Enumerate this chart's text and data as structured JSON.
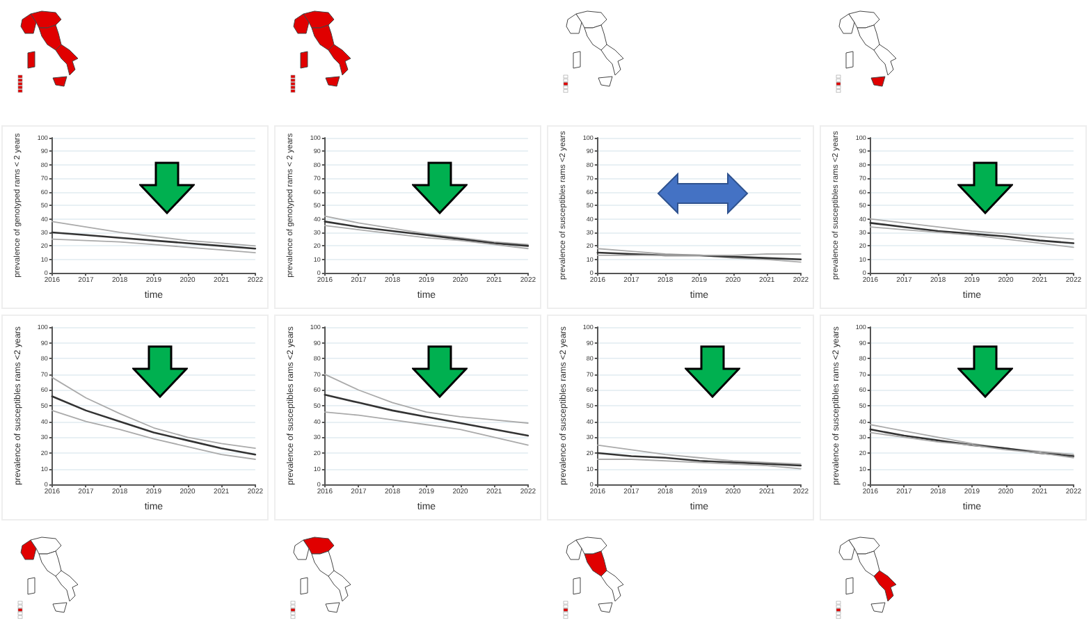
{
  "chart_data": [
    {
      "type": "line",
      "xlabel": "time",
      "ylabel": "prevalence of genotyped rams < 2 years",
      "x": [
        2016,
        2017,
        2018,
        2019,
        2020,
        2021,
        2022
      ],
      "xlim": [
        2016,
        2022
      ],
      "xticks": [
        2016,
        2017,
        2018,
        2019,
        2020,
        2021,
        2022
      ],
      "ylim": [
        0,
        100
      ],
      "yticks": [
        0,
        10,
        20,
        30,
        40,
        50,
        60,
        70,
        80,
        90,
        100
      ],
      "grid": "y",
      "marker": "none",
      "line_style": "solid",
      "series": [
        {
          "color": "#aaaaaa",
          "values": [
            38,
            34,
            30,
            27,
            24,
            22,
            20
          ]
        },
        {
          "color": "#333333",
          "values": [
            30,
            28,
            26,
            24,
            22,
            20,
            18
          ]
        },
        {
          "color": "#aaaaaa",
          "values": [
            25,
            24,
            23,
            21,
            19,
            17,
            15
          ]
        }
      ]
    },
    {
      "type": "line",
      "xlabel": "time",
      "ylabel": "prevalence of genotyped rams < 2 years",
      "x": [
        2016,
        2017,
        2018,
        2019,
        2020,
        2021,
        2022
      ],
      "xlim": [
        2016,
        2022
      ],
      "xticks": [
        2016,
        2017,
        2018,
        2019,
        2020,
        2021,
        2022
      ],
      "ylim": [
        0,
        100
      ],
      "yticks": [
        0,
        10,
        20,
        30,
        40,
        50,
        60,
        70,
        80,
        90,
        100
      ],
      "grid": "y",
      "marker": "none",
      "line_style": "solid",
      "series": [
        {
          "color": "#aaaaaa",
          "values": [
            42,
            37,
            33,
            29,
            26,
            23,
            21
          ]
        },
        {
          "color": "#333333",
          "values": [
            38,
            34,
            31,
            28,
            25,
            22,
            20
          ]
        },
        {
          "color": "#aaaaaa",
          "values": [
            35,
            32,
            29,
            26,
            24,
            21,
            18
          ]
        }
      ]
    },
    {
      "type": "line",
      "xlabel": "time",
      "ylabel": "prevalence of susceptibles rams <2 years",
      "x": [
        2016,
        2017,
        2018,
        2019,
        2020,
        2021,
        2022
      ],
      "xlim": [
        2016,
        2022
      ],
      "xticks": [
        2016,
        2017,
        2018,
        2019,
        2020,
        2021,
        2022
      ],
      "ylim": [
        0,
        100
      ],
      "yticks": [
        0,
        10,
        20,
        30,
        40,
        50,
        60,
        70,
        80,
        90,
        100
      ],
      "grid": "y",
      "marker": "none",
      "line_style": "solid",
      "series": [
        {
          "color": "#aaaaaa",
          "values": [
            18,
            16,
            14,
            13,
            11,
            10,
            8
          ]
        },
        {
          "color": "#333333",
          "values": [
            15,
            14,
            13,
            13,
            12,
            11,
            10
          ]
        },
        {
          "color": "#aaaaaa",
          "values": [
            13,
            13,
            13,
            13,
            13,
            14,
            14
          ]
        }
      ]
    },
    {
      "type": "line",
      "xlabel": "time",
      "ylabel": "prevalence of susceptibles rams <2 years",
      "x": [
        2016,
        2017,
        2018,
        2019,
        2020,
        2021,
        2022
      ],
      "xlim": [
        2016,
        2022
      ],
      "xticks": [
        2016,
        2017,
        2018,
        2019,
        2020,
        2021,
        2022
      ],
      "ylim": [
        0,
        100
      ],
      "yticks": [
        0,
        10,
        20,
        30,
        40,
        50,
        60,
        70,
        80,
        90,
        100
      ],
      "grid": "y",
      "marker": "none",
      "line_style": "solid",
      "series": [
        {
          "color": "#aaaaaa",
          "values": [
            40,
            37,
            34,
            31,
            29,
            27,
            25
          ]
        },
        {
          "color": "#333333",
          "values": [
            37,
            34,
            31,
            29,
            27,
            24,
            22
          ]
        },
        {
          "color": "#aaaaaa",
          "values": [
            34,
            32,
            30,
            28,
            25,
            22,
            19
          ]
        }
      ]
    },
    {
      "type": "line",
      "xlabel": "time",
      "ylabel": "prevalence of susceptibles rams <2 years",
      "x": [
        2016,
        2017,
        2018,
        2019,
        2020,
        2021,
        2022
      ],
      "xlim": [
        2016,
        2022
      ],
      "xticks": [
        2016,
        2017,
        2018,
        2019,
        2020,
        2021,
        2022
      ],
      "ylim": [
        0,
        100
      ],
      "yticks": [
        0,
        10,
        20,
        30,
        40,
        50,
        60,
        70,
        80,
        90,
        100
      ],
      "grid": "y",
      "marker": "none",
      "line_style": "solid",
      "series": [
        {
          "color": "#aaaaaa",
          "values": [
            68,
            55,
            45,
            36,
            30,
            26,
            23
          ]
        },
        {
          "color": "#333333",
          "values": [
            56,
            47,
            40,
            33,
            28,
            23,
            19
          ]
        },
        {
          "color": "#aaaaaa",
          "values": [
            47,
            40,
            35,
            29,
            24,
            19,
            16
          ]
        }
      ]
    },
    {
      "type": "line",
      "xlabel": "time",
      "ylabel": "prevalence of susceptibles rams <2 years",
      "x": [
        2016,
        2017,
        2018,
        2019,
        2020,
        2021,
        2022
      ],
      "xlim": [
        2016,
        2022
      ],
      "xticks": [
        2016,
        2017,
        2018,
        2019,
        2020,
        2021,
        2022
      ],
      "ylim": [
        0,
        100
      ],
      "yticks": [
        0,
        10,
        20,
        30,
        40,
        50,
        60,
        70,
        80,
        90,
        100
      ],
      "grid": "y",
      "marker": "none",
      "line_style": "solid",
      "series": [
        {
          "color": "#aaaaaa",
          "values": [
            70,
            60,
            52,
            46,
            43,
            41,
            39
          ]
        },
        {
          "color": "#333333",
          "values": [
            57,
            52,
            47,
            43,
            39,
            35,
            31
          ]
        },
        {
          "color": "#aaaaaa",
          "values": [
            46,
            44,
            41,
            38,
            35,
            30,
            25
          ]
        }
      ]
    },
    {
      "type": "line",
      "xlabel": "time",
      "ylabel": "prevalence of susceptibles rams <2 years",
      "x": [
        2016,
        2017,
        2018,
        2019,
        2020,
        2021,
        2022
      ],
      "xlim": [
        2016,
        2022
      ],
      "xticks": [
        2016,
        2017,
        2018,
        2019,
        2020,
        2021,
        2022
      ],
      "ylim": [
        0,
        100
      ],
      "yticks": [
        0,
        10,
        20,
        30,
        40,
        50,
        60,
        70,
        80,
        90,
        100
      ],
      "grid": "y",
      "marker": "none",
      "line_style": "solid",
      "series": [
        {
          "color": "#aaaaaa",
          "values": [
            25,
            22,
            19,
            17,
            15,
            14,
            13
          ]
        },
        {
          "color": "#333333",
          "values": [
            20,
            18,
            17,
            15,
            14,
            13,
            12
          ]
        },
        {
          "color": "#aaaaaa",
          "values": [
            16,
            16,
            15,
            14,
            13,
            12,
            10
          ]
        }
      ]
    },
    {
      "type": "line",
      "xlabel": "time",
      "ylabel": "prevalence of susceptibles rams <2 years",
      "x": [
        2016,
        2017,
        2018,
        2019,
        2020,
        2021,
        2022
      ],
      "xlim": [
        2016,
        2022
      ],
      "xticks": [
        2016,
        2017,
        2018,
        2019,
        2020,
        2021,
        2022
      ],
      "ylim": [
        0,
        100
      ],
      "yticks": [
        0,
        10,
        20,
        30,
        40,
        50,
        60,
        70,
        80,
        90,
        100
      ],
      "grid": "y",
      "marker": "none",
      "line_style": "solid",
      "series": [
        {
          "color": "#aaaaaa",
          "values": [
            38,
            34,
            30,
            26,
            23,
            21,
            19
          ]
        },
        {
          "color": "#333333",
          "values": [
            35,
            31,
            28,
            25,
            23,
            20,
            18
          ]
        },
        {
          "color": "#aaaaaa",
          "values": [
            33,
            30,
            27,
            25,
            22,
            20,
            17
          ]
        }
      ]
    }
  ]
}
